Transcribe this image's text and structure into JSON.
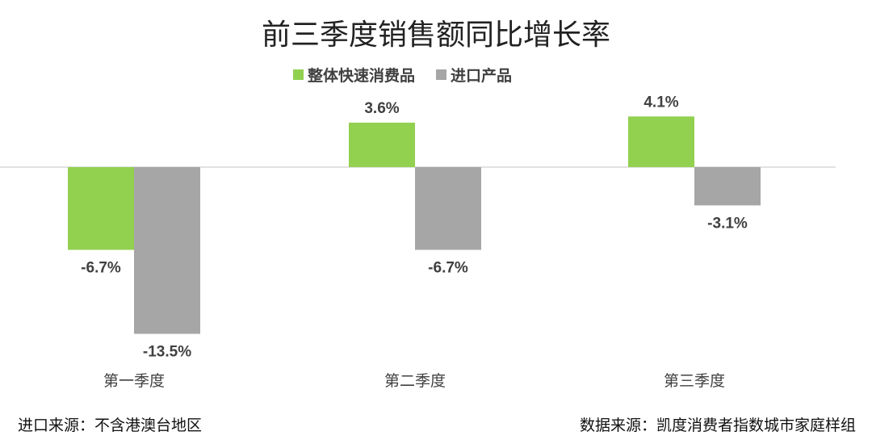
{
  "chart_data": {
    "type": "bar",
    "title": "前三季度销售额同比增长率",
    "categories": [
      "第一季度",
      "第二季度",
      "第三季度"
    ],
    "series": [
      {
        "name": "整体快速消费品",
        "values": [
          -6.7,
          3.6,
          4.1
        ],
        "labels": [
          "-6.7%",
          "3.6%",
          "4.1%"
        ],
        "color": "#92D050"
      },
      {
        "name": "进口产品",
        "values": [
          -13.5,
          -6.7,
          -3.1
        ],
        "labels": [
          "-13.5%",
          "-6.7%",
          "-3.1%"
        ],
        "color": "#A6A6A6"
      }
    ],
    "unit": "%",
    "legend_position": "top",
    "grid": false,
    "axis_line_color": "#D9D9D9"
  },
  "footnotes": {
    "left": "进口来源：不含港澳台地区",
    "right": "数据来源：凯度消费者指数城市家庭样组"
  }
}
